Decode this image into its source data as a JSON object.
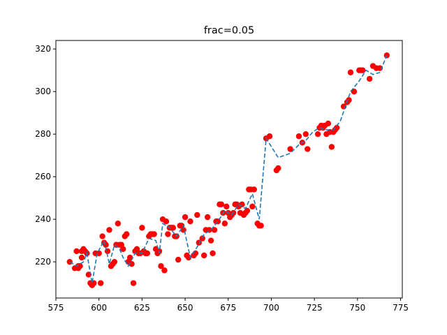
{
  "chart_data": {
    "type": "scatter",
    "title": "frac=0.05",
    "xlabel": "",
    "ylabel": "",
    "xlim": [
      575,
      776
    ],
    "ylim": [
      203,
      324
    ],
    "xticks": [
      575,
      600,
      625,
      650,
      675,
      700,
      725,
      750,
      775
    ],
    "yticks": [
      220,
      240,
      260,
      280,
      300,
      320
    ],
    "grid": false,
    "colors": {
      "points": "#ff0000",
      "line": "#1f77b4"
    },
    "series": [
      {
        "type": "scatter",
        "x": [
          583,
          586,
          587,
          588,
          588,
          589,
          590,
          590,
          591,
          592,
          593,
          594,
          595,
          596,
          597,
          598,
          600,
          601,
          602,
          603,
          604,
          605,
          606,
          607,
          608,
          609,
          610,
          611,
          612,
          613,
          614,
          615,
          616,
          617,
          618,
          619,
          620,
          621,
          622,
          623,
          624,
          625,
          626,
          627,
          628,
          629,
          630,
          631,
          632,
          633,
          634,
          635,
          636,
          637,
          638,
          639,
          640,
          641,
          642,
          643,
          644,
          645,
          646,
          647,
          648,
          649,
          650,
          651,
          652,
          653,
          655,
          656,
          657,
          658,
          660,
          661,
          662,
          663,
          664,
          665,
          666,
          667,
          668,
          669,
          670,
          671,
          672,
          673,
          674,
          675,
          676,
          677,
          678,
          679,
          680,
          681,
          682,
          683,
          684,
          685,
          686,
          687,
          688,
          689,
          690,
          692,
          693,
          694,
          697,
          699,
          703,
          704,
          711,
          716,
          718,
          720,
          721,
          727,
          728,
          729,
          730,
          731,
          732,
          733,
          734,
          735,
          736,
          737,
          738,
          742,
          744,
          745,
          746,
          748,
          751,
          752,
          753,
          757,
          759,
          761,
          763,
          767
        ],
        "y": [
          220,
          217,
          225,
          218,
          217,
          218,
          225,
          222,
          226,
          225,
          224,
          214,
          210,
          209,
          210,
          224,
          224,
          210,
          232,
          229,
          228,
          225,
          235,
          218,
          219,
          220,
          228,
          238,
          228,
          228,
          226,
          232,
          233,
          220,
          222,
          219,
          210,
          225,
          226,
          224,
          224,
          236,
          225,
          224,
          224,
          232,
          233,
          233,
          233,
          226,
          224,
          225,
          218,
          240,
          216,
          239,
          233,
          236,
          236,
          236,
          232,
          232,
          221,
          237,
          237,
          235,
          241,
          223,
          222,
          239,
          223,
          224,
          242,
          229,
          231,
          223,
          235,
          241,
          235,
          230,
          224,
          235,
          239,
          239,
          247,
          247,
          243,
          238,
          246,
          243,
          241,
          242,
          243,
          247,
          247,
          246,
          243,
          247,
          242,
          243,
          244,
          254,
          254,
          246,
          254,
          238,
          237,
          237,
          278,
          279,
          263,
          264,
          273,
          279,
          276,
          280,
          273,
          280,
          283,
          284,
          283,
          284,
          280,
          285,
          281,
          274,
          281,
          282,
          283,
          293,
          295,
          296,
          309,
          300,
          310,
          310,
          310,
          306,
          312,
          311,
          311,
          317
        ]
      },
      {
        "type": "line",
        "style": "dashed",
        "x": [
          583,
          587,
          591,
          593,
          596,
          599,
          603,
          606,
          609,
          612,
          614,
          617,
          621,
          625,
          629,
          633,
          635,
          637,
          641,
          645,
          649,
          653,
          657,
          661,
          665,
          669,
          673,
          677,
          681,
          685,
          689,
          693,
          697,
          704,
          711,
          716,
          720,
          724,
          728,
          732,
          736,
          740,
          746,
          751,
          755,
          759,
          763,
          767
        ],
        "y": [
          220,
          218,
          220,
          224,
          210,
          224,
          230,
          219,
          228,
          226,
          222,
          218,
          224,
          224,
          231,
          230,
          224,
          238,
          236,
          232,
          237,
          222,
          227,
          233,
          235,
          239,
          244,
          242,
          247,
          245,
          252,
          240,
          278,
          269,
          271,
          275,
          277,
          281,
          283,
          282,
          282,
          286,
          300,
          305,
          310,
          308,
          309,
          317
        ]
      }
    ]
  }
}
